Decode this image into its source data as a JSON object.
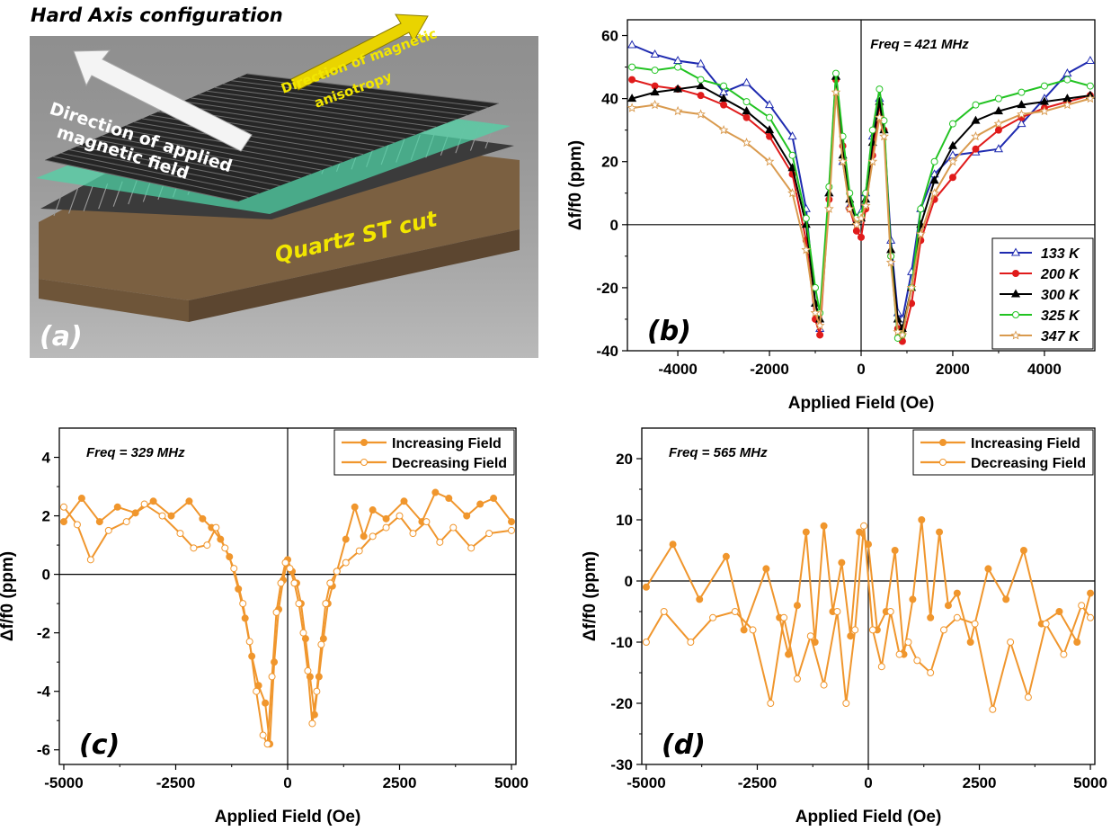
{
  "figure": {
    "panel_a": {
      "title": "Hard Axis configuration",
      "field_label": "Direction of applied magnetic field",
      "anisotropy_label": "Direction of magnetic anisotropy",
      "substrate_label": "Quartz ST cut",
      "panel_label": "(a)",
      "colors": {
        "frame": "#8c8c8c",
        "film": "#3a3a3a",
        "glass": "#3fd7a4",
        "substrate": "#8a6f4e",
        "arrow_field": "#ffffff",
        "arrow_anisotropy": "#f2e600"
      }
    }
  },
  "chart_data": [
    {
      "id": "b",
      "type": "line",
      "panel_label": "(b)",
      "annotation": "Freq = 421 MHz",
      "xlabel": "Applied Field (Oe)",
      "ylabel": "Δf/f0 (ppm)",
      "xlim": [
        -5100,
        5100
      ],
      "ylim": [
        -40,
        65
      ],
      "xticks": [
        -4000,
        -2000,
        0,
        2000,
        4000
      ],
      "yticks": [
        -40,
        -20,
        0,
        20,
        40,
        60
      ],
      "legend_position": "bottom-right",
      "series": [
        {
          "name": "133 K",
          "color": "#1f2bb0",
          "marker": "open-triangle",
          "x": [
            -5000,
            -4500,
            -4000,
            -3500,
            -3000,
            -2500,
            -2000,
            -1500,
            -1200,
            -1000,
            -900,
            -700,
            -550,
            -400,
            -250,
            -100,
            0,
            100,
            250,
            400,
            500,
            650,
            800,
            900,
            1100,
            1300,
            1600,
            2000,
            2500,
            3000,
            3500,
            4000,
            4500,
            5000
          ],
          "y": [
            57,
            54,
            52,
            51,
            42,
            45,
            38,
            28,
            5,
            -25,
            -33,
            10,
            47,
            20,
            6,
            2,
            4,
            10,
            28,
            40,
            30,
            -5,
            -28,
            -30,
            -15,
            5,
            16,
            22,
            23,
            24,
            32,
            40,
            48,
            52
          ]
        },
        {
          "name": "200 K",
          "color": "#e01b1b",
          "marker": "filled-circle",
          "x": [
            -5000,
            -4500,
            -4000,
            -3500,
            -3000,
            -2500,
            -2000,
            -1500,
            -1200,
            -1000,
            -900,
            -700,
            -550,
            -400,
            -250,
            -100,
            0,
            100,
            250,
            400,
            500,
            650,
            800,
            900,
            1100,
            1300,
            1600,
            2000,
            2500,
            3000,
            3500,
            4000,
            4500,
            5000
          ],
          "y": [
            46,
            44,
            43,
            41,
            38,
            34,
            28,
            16,
            -5,
            -30,
            -35,
            8,
            46,
            25,
            5,
            -2,
            -4,
            5,
            22,
            38,
            30,
            -10,
            -33,
            -37,
            -25,
            -5,
            8,
            15,
            24,
            30,
            34,
            37,
            39,
            41
          ]
        },
        {
          "name": "300 K",
          "color": "#000000",
          "marker": "filled-triangle",
          "x": [
            -5000,
            -4500,
            -4000,
            -3500,
            -3000,
            -2500,
            -2000,
            -1500,
            -1200,
            -1000,
            -900,
            -700,
            -550,
            -400,
            -250,
            -100,
            0,
            100,
            250,
            400,
            500,
            650,
            800,
            900,
            1100,
            1300,
            1600,
            2000,
            2500,
            3000,
            3500,
            4000,
            4500,
            5000
          ],
          "y": [
            40,
            42,
            43,
            44,
            40,
            36,
            30,
            18,
            0,
            -25,
            -30,
            10,
            47,
            22,
            8,
            1,
            2,
            8,
            26,
            39,
            30,
            -8,
            -30,
            -33,
            -20,
            0,
            14,
            25,
            33,
            36,
            38,
            39,
            40,
            41
          ]
        },
        {
          "name": "325 K",
          "color": "#22c322",
          "marker": "open-circle",
          "x": [
            -5000,
            -4500,
            -4000,
            -3500,
            -3000,
            -2500,
            -2000,
            -1500,
            -1200,
            -1000,
            -900,
            -700,
            -550,
            -400,
            -250,
            -100,
            0,
            100,
            250,
            400,
            500,
            650,
            800,
            900,
            1100,
            1300,
            1600,
            2000,
            2500,
            3000,
            3500,
            4000,
            4500,
            5000
          ],
          "y": [
            50,
            49,
            50,
            46,
            44,
            39,
            34,
            22,
            2,
            -20,
            -28,
            12,
            48,
            28,
            10,
            2,
            3,
            10,
            30,
            43,
            33,
            -10,
            -36,
            -35,
            -20,
            5,
            20,
            32,
            38,
            40,
            42,
            44,
            46,
            44
          ]
        },
        {
          "name": "347 K",
          "color": "#d99a4e",
          "marker": "open-star",
          "x": [
            -5000,
            -4500,
            -4000,
            -3500,
            -3000,
            -2500,
            -2000,
            -1500,
            -1200,
            -1000,
            -900,
            -700,
            -550,
            -400,
            -250,
            -100,
            0,
            100,
            250,
            400,
            500,
            650,
            800,
            900,
            1100,
            1300,
            1600,
            2000,
            2500,
            3000,
            3500,
            4000,
            4500,
            5000
          ],
          "y": [
            37,
            38,
            36,
            35,
            30,
            26,
            20,
            10,
            -8,
            -28,
            -32,
            5,
            42,
            20,
            5,
            0,
            2,
            6,
            20,
            34,
            28,
            -12,
            -34,
            -35,
            -20,
            -3,
            10,
            20,
            28,
            32,
            35,
            36,
            38,
            40
          ]
        }
      ]
    },
    {
      "id": "c",
      "type": "line",
      "panel_label": "(c)",
      "annotation": "Freq = 329 MHz",
      "xlabel": "Applied Field (Oe)",
      "ylabel": "Δf/f0 (ppm)",
      "xlim": [
        -5100,
        5100
      ],
      "ylim": [
        -6.5,
        5
      ],
      "xticks": [
        -5000,
        -2500,
        0,
        2500,
        5000
      ],
      "yticks": [
        -6,
        -4,
        -2,
        0,
        2,
        4
      ],
      "legend_position": "top-right",
      "series": [
        {
          "name": "Increasing Field",
          "color": "#f0962d",
          "marker": "filled-circle",
          "x": [
            -5000,
            -4600,
            -4200,
            -3800,
            -3400,
            -3000,
            -2600,
            -2200,
            -1900,
            -1700,
            -1500,
            -1300,
            -1100,
            -950,
            -800,
            -650,
            -500,
            -400,
            -300,
            -200,
            -100,
            0,
            100,
            200,
            300,
            400,
            500,
            600,
            700,
            800,
            900,
            1000,
            1100,
            1300,
            1500,
            1700,
            1900,
            2200,
            2600,
            3000,
            3300,
            3600,
            4000,
            4300,
            4600,
            5000
          ],
          "y": [
            1.8,
            2.6,
            1.8,
            2.3,
            2.1,
            2.5,
            2.0,
            2.5,
            1.9,
            1.6,
            1.2,
            0.6,
            -0.5,
            -1.5,
            -2.8,
            -3.8,
            -4.4,
            -5.8,
            -3.0,
            -1.2,
            -0.2,
            0.5,
            0.1,
            -0.3,
            -1.0,
            -2.2,
            -3.5,
            -4.8,
            -3.5,
            -2.2,
            -1.0,
            -0.4,
            0.1,
            1.2,
            2.3,
            1.3,
            2.2,
            1.9,
            2.5,
            1.8,
            2.8,
            2.6,
            2.0,
            2.4,
            2.6,
            1.8
          ]
        },
        {
          "name": "Decreasing Field",
          "color": "#f0962d",
          "marker": "open-circle",
          "x": [
            -5000,
            -4700,
            -4400,
            -4000,
            -3600,
            -3200,
            -2800,
            -2400,
            -2100,
            -1800,
            -1600,
            -1400,
            -1200,
            -1000,
            -850,
            -700,
            -550,
            -450,
            -350,
            -250,
            -150,
            -50,
            50,
            150,
            250,
            350,
            450,
            550,
            650,
            750,
            850,
            950,
            1100,
            1300,
            1600,
            1900,
            2200,
            2500,
            2800,
            3100,
            3400,
            3700,
            4100,
            4500,
            5000
          ],
          "y": [
            2.3,
            1.7,
            0.5,
            1.5,
            1.8,
            2.4,
            2.0,
            1.4,
            0.9,
            1.0,
            1.6,
            0.9,
            0.2,
            -1.0,
            -2.3,
            -4.0,
            -5.5,
            -5.8,
            -3.5,
            -1.3,
            -0.3,
            0.4,
            0.2,
            -0.3,
            -1.0,
            -2.0,
            -3.3,
            -5.1,
            -4.0,
            -2.4,
            -1.0,
            -0.3,
            0.1,
            0.4,
            0.8,
            1.3,
            1.6,
            2.0,
            1.4,
            1.8,
            1.1,
            1.6,
            0.9,
            1.4,
            1.5
          ]
        }
      ]
    },
    {
      "id": "d",
      "type": "line",
      "panel_label": "(d)",
      "annotation": "Freq = 565 MHz",
      "xlabel": "Applied Field (Oe)",
      "ylabel": "Δf/f0 (ppm)",
      "xlim": [
        -5100,
        5100
      ],
      "ylim": [
        -30,
        25
      ],
      "xticks": [
        -5000,
        -2500,
        0,
        2500,
        5000
      ],
      "yticks": [
        -30,
        -20,
        -10,
        0,
        10,
        20
      ],
      "legend_position": "top-right",
      "series": [
        {
          "name": "Increasing Field",
          "color": "#f0962d",
          "marker": "filled-circle",
          "x": [
            -5000,
            -4400,
            -3800,
            -3200,
            -2800,
            -2300,
            -2000,
            -1800,
            -1600,
            -1400,
            -1200,
            -1000,
            -800,
            -600,
            -400,
            -200,
            0,
            200,
            400,
            600,
            800,
            1000,
            1200,
            1400,
            1600,
            1800,
            2000,
            2300,
            2700,
            3100,
            3500,
            3900,
            4300,
            4700,
            5000
          ],
          "y": [
            -1,
            6,
            -3,
            4,
            -8,
            2,
            -6,
            -12,
            -4,
            8,
            -10,
            9,
            -5,
            3,
            -9,
            8,
            6,
            -8,
            -5,
            5,
            -12,
            -3,
            10,
            -6,
            8,
            -4,
            -2,
            -10,
            2,
            -3,
            5,
            -7,
            -5,
            -10,
            -2
          ],
          "style": "solid"
        },
        {
          "name": "Decreasing Field",
          "color": "#f0962d",
          "marker": "open-circle",
          "x": [
            -5000,
            -4600,
            -4000,
            -3500,
            -3000,
            -2600,
            -2200,
            -1900,
            -1600,
            -1300,
            -1000,
            -700,
            -500,
            -300,
            -100,
            100,
            300,
            500,
            700,
            900,
            1100,
            1400,
            1700,
            2000,
            2400,
            2800,
            3200,
            3600,
            4000,
            4400,
            4800,
            5000
          ],
          "y": [
            -10,
            -5,
            -10,
            -6,
            -5,
            -8,
            -20,
            -6,
            -16,
            -9,
            -17,
            -5,
            -20,
            -8,
            9,
            -8,
            -14,
            -5,
            -12,
            -10,
            -13,
            -15,
            -8,
            -6,
            -7,
            -21,
            -10,
            -19,
            -7,
            -12,
            -4,
            -6
          ],
          "style": "solid"
        }
      ]
    }
  ]
}
